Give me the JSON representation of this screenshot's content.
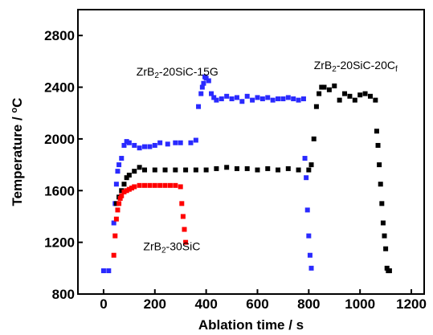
{
  "chart_data": {
    "type": "scatter",
    "xlabel": "Ablation time / s",
    "ylabel_main": "Temperature / ",
    "ylabel_unit": "oC",
    "xlim": [
      -100,
      1250
    ],
    "ylim": [
      800,
      3000
    ],
    "x_ticks": [
      0,
      200,
      400,
      600,
      800,
      1000,
      1200
    ],
    "y_ticks": [
      800,
      1200,
      1600,
      2000,
      2400,
      2800
    ],
    "grid": false,
    "series": [
      {
        "name_parts": [
          "ZrB",
          "2",
          "-20SiC-15G"
        ],
        "label_x": 128,
        "label_y": 2490,
        "color": "#2a2aff",
        "x": [
          0,
          20,
          40,
          45,
          50,
          55,
          60,
          70,
          80,
          90,
          100,
          120,
          140,
          160,
          180,
          200,
          220,
          250,
          280,
          300,
          340,
          360,
          370,
          380,
          385,
          390,
          395,
          400,
          410,
          420,
          430,
          440,
          460,
          480,
          500,
          520,
          540,
          560,
          580,
          600,
          620,
          640,
          660,
          680,
          700,
          720,
          740,
          760,
          780,
          785,
          790,
          795,
          800,
          805,
          810
        ],
        "y": [
          980,
          980,
          1350,
          1500,
          1650,
          1750,
          1800,
          1850,
          1950,
          1980,
          1970,
          1950,
          1930,
          1940,
          1940,
          1950,
          1970,
          1960,
          1970,
          1970,
          1970,
          1990,
          2250,
          2350,
          2400,
          2430,
          2480,
          2470,
          2450,
          2350,
          2320,
          2300,
          2310,
          2330,
          2310,
          2320,
          2290,
          2330,
          2300,
          2320,
          2310,
          2320,
          2300,
          2310,
          2310,
          2320,
          2310,
          2300,
          2310,
          1850,
          1700,
          1450,
          1250,
          1100,
          1000
        ]
      },
      {
        "name_parts": [
          "ZrB",
          "2",
          "-20SiC-20C",
          "f"
        ],
        "label_x": 820,
        "label_y": 2540,
        "color": "#000000",
        "x": [
          50,
          60,
          70,
          80,
          90,
          100,
          120,
          140,
          160,
          200,
          240,
          280,
          320,
          360,
          400,
          440,
          480,
          520,
          560,
          600,
          640,
          680,
          720,
          760,
          800,
          810,
          820,
          830,
          840,
          850,
          860,
          880,
          900,
          920,
          940,
          960,
          980,
          1000,
          1020,
          1040,
          1060,
          1065,
          1070,
          1075,
          1080,
          1085,
          1090,
          1095,
          1100,
          1105,
          1110,
          1115
        ],
        "y": [
          1500,
          1550,
          1600,
          1650,
          1700,
          1720,
          1750,
          1780,
          1760,
          1760,
          1760,
          1760,
          1760,
          1760,
          1760,
          1770,
          1780,
          1770,
          1770,
          1760,
          1770,
          1760,
          1770,
          1760,
          1760,
          1800,
          2000,
          2250,
          2350,
          2400,
          2400,
          2380,
          2410,
          2300,
          2350,
          2330,
          2300,
          2340,
          2350,
          2330,
          2300,
          2060,
          1950,
          1800,
          1650,
          1500,
          1350,
          1250,
          1150,
          1000,
          980,
          980
        ]
      },
      {
        "name_parts": [
          "ZrB",
          "2",
          "-30SiC"
        ],
        "label_x": 155,
        "label_y": 1140,
        "color": "#ff0000",
        "x": [
          40,
          45,
          50,
          55,
          60,
          65,
          70,
          80,
          90,
          100,
          110,
          120,
          140,
          160,
          180,
          200,
          220,
          240,
          260,
          280,
          300,
          305,
          310,
          315,
          320
        ],
        "y": [
          1100,
          1250,
          1380,
          1450,
          1500,
          1540,
          1560,
          1590,
          1600,
          1610,
          1620,
          1630,
          1640,
          1640,
          1640,
          1640,
          1640,
          1640,
          1640,
          1640,
          1630,
          1500,
          1400,
          1300,
          1200
        ]
      }
    ]
  }
}
